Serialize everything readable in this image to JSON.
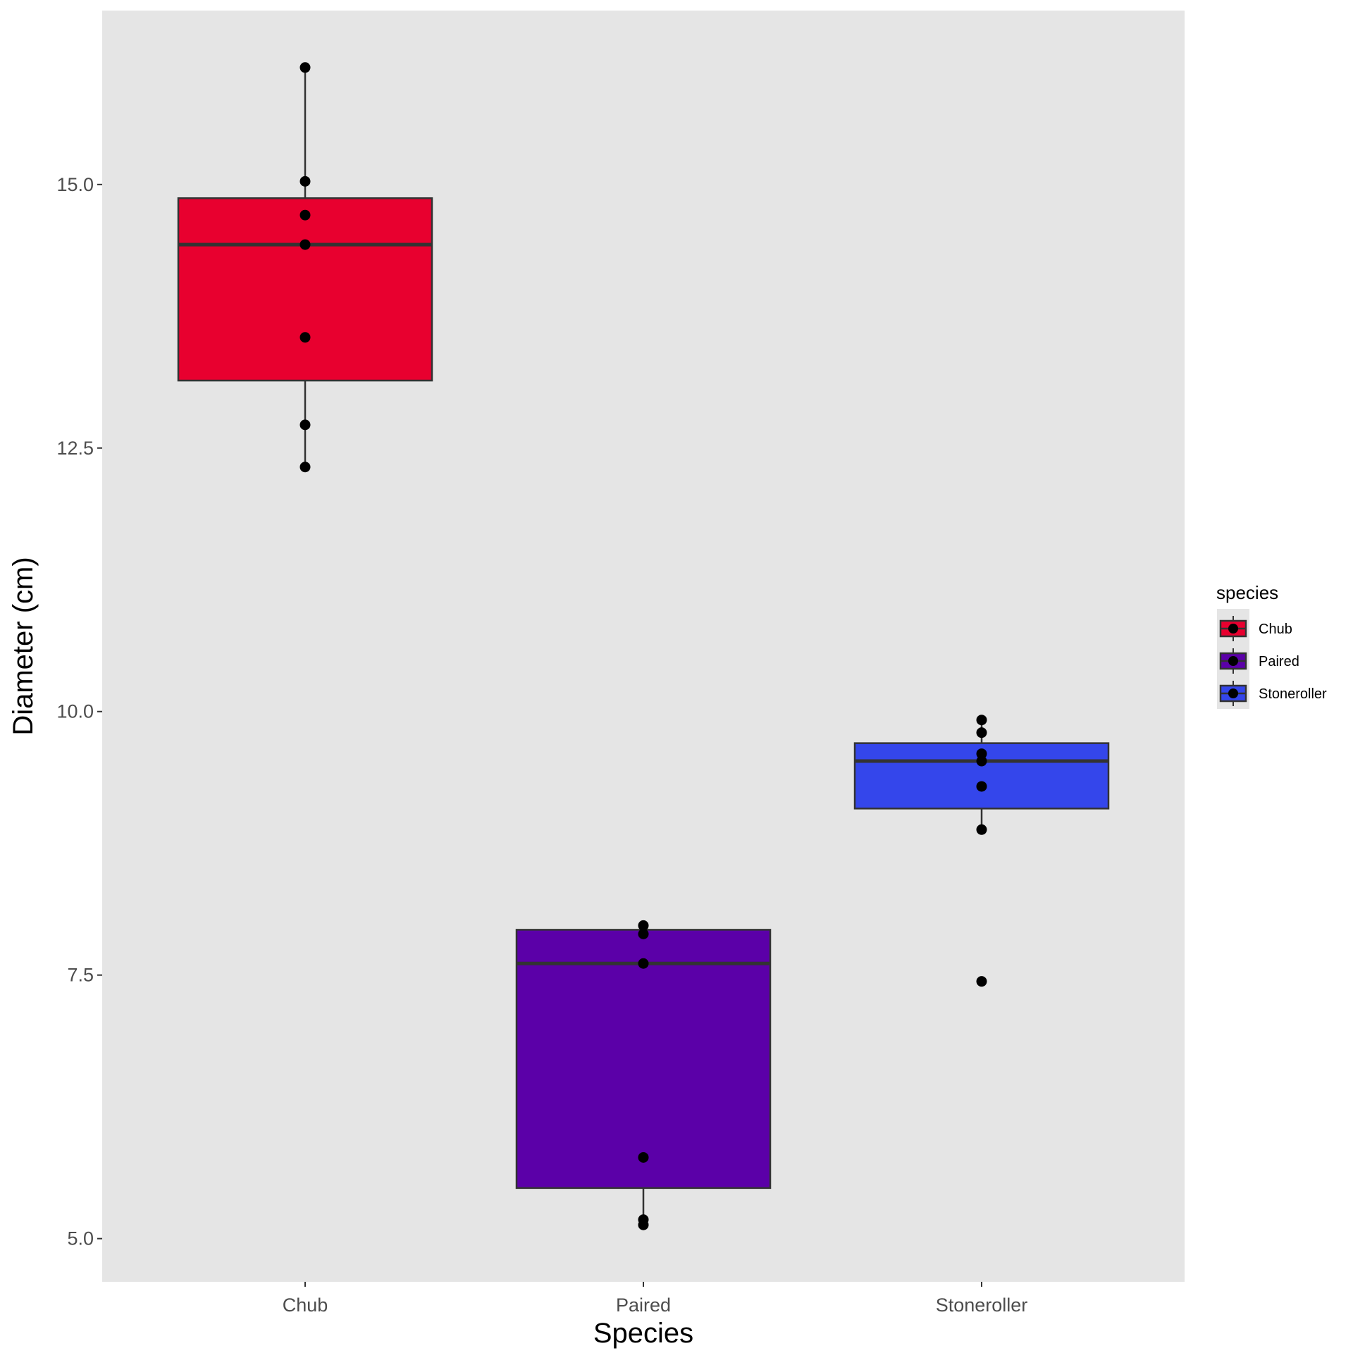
{
  "chart_data": {
    "type": "box",
    "title": "",
    "xlabel": "Species",
    "ylabel": "Diameter (cm)",
    "ylim": [
      4.59,
      16.65
    ],
    "yticks": [
      5.0,
      7.5,
      10.0,
      12.5,
      15.0
    ],
    "ytick_labels": [
      "5.0",
      "7.5",
      "10.0",
      "12.5",
      "15.0"
    ],
    "categories": [
      "Chub",
      "Paired",
      "Stoneroller"
    ],
    "grid": false,
    "legend": {
      "title": "species",
      "placement": "right",
      "entries": [
        "Chub",
        "Paired",
        "Stoneroller"
      ]
    },
    "series": [
      {
        "name": "Chub",
        "color": "#E8002F",
        "q1": 13.14,
        "median": 14.43,
        "q3": 14.87,
        "whisker_low": 12.32,
        "whisker_high": 16.11,
        "points": [
          16.11,
          15.03,
          14.71,
          14.43,
          13.55,
          12.72,
          12.32
        ]
      },
      {
        "name": "Paired",
        "color": "#5B00A8",
        "q1": 5.48,
        "median": 7.61,
        "q3": 7.93,
        "whisker_low": 5.13,
        "whisker_high": 7.97,
        "points": [
          7.97,
          7.89,
          7.61,
          5.77,
          5.18,
          5.13
        ]
      },
      {
        "name": "Stoneroller",
        "color": "#3446EB",
        "q1": 9.08,
        "median": 9.53,
        "q3": 9.7,
        "whisker_low": 8.88,
        "whisker_high": 9.92,
        "points": [
          9.92,
          9.8,
          9.6,
          9.53,
          9.29,
          8.88,
          7.44
        ]
      }
    ]
  }
}
